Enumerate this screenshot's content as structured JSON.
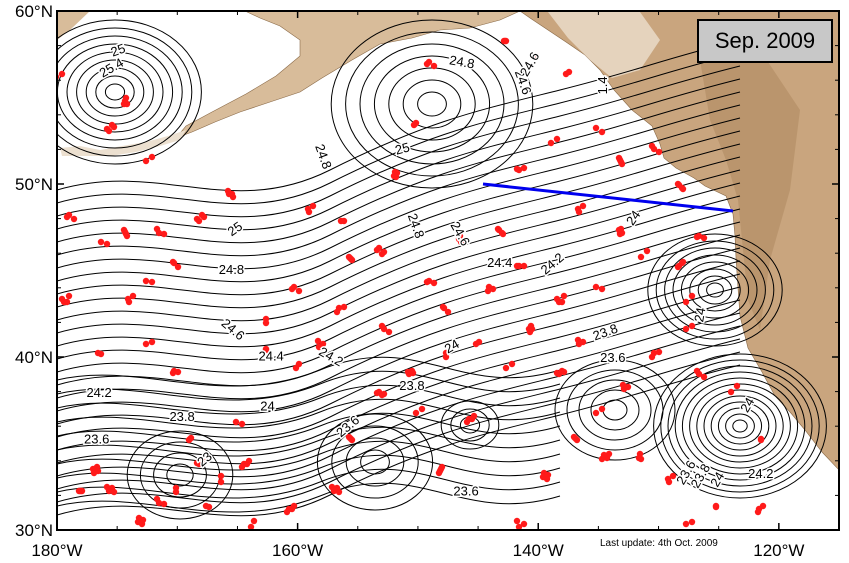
{
  "map": {
    "date_label": "Sep. 2009",
    "footer_note": "Last update: 4th Oct. 2009",
    "colors": {
      "land": "#c9a57e",
      "land_light": "#e2cdb3",
      "contour": "#000000",
      "float": "#ff1a1a",
      "section_line": "#0000ee"
    },
    "lon_ticks": [
      "180°W",
      "160°W",
      "140°W",
      "120°W"
    ],
    "lat_ticks": [
      "60°N",
      "50°N",
      "40°N",
      "30°N"
    ],
    "contour_labels": [
      {
        "text": "25",
        "lon": -151.2,
        "lat": 51.8,
        "rot": -15
      },
      {
        "text": "24.8",
        "lon": -146.4,
        "lat": 56.8,
        "rot": 10
      },
      {
        "text": "24.6",
        "lon": -141.6,
        "lat": 55.8,
        "rot": 70
      },
      {
        "text": "24.8",
        "lon": -158.2,
        "lat": 51.5,
        "rot": 70
      },
      {
        "text": "25",
        "lon": -165,
        "lat": 47.2,
        "rot": -35
      },
      {
        "text": "24.8",
        "lon": -165.5,
        "lat": 44.8,
        "rot": 0
      },
      {
        "text": "24.8",
        "lon": -150.5,
        "lat": 47.5,
        "rot": 70
      },
      {
        "text": "24.6",
        "lon": -146.8,
        "lat": 47.0,
        "rot": 60
      },
      {
        "text": "24.4",
        "lon": -143.2,
        "lat": 45.2,
        "rot": 0
      },
      {
        "text": "24.2",
        "lon": -138.6,
        "lat": 45.2,
        "rot": -40
      },
      {
        "text": "24",
        "lon": -131.8,
        "lat": 47.9,
        "rot": -55
      },
      {
        "text": "23.8",
        "lon": -134.3,
        "lat": 41.2,
        "rot": -20
      },
      {
        "text": "23.6",
        "lon": -133.8,
        "lat": 39.7,
        "rot": 0
      },
      {
        "text": "24",
        "lon": -147,
        "lat": 40.4,
        "rot": -30
      },
      {
        "text": "24.2",
        "lon": -157.4,
        "lat": 39.8,
        "rot": 30
      },
      {
        "text": "24.6",
        "lon": -165.6,
        "lat": 41.4,
        "rot": 40
      },
      {
        "text": "24.4",
        "lon": -162.2,
        "lat": 39.8,
        "rot": 0
      },
      {
        "text": "23.8",
        "lon": -150.5,
        "lat": 38.1,
        "rot": 0
      },
      {
        "text": "24",
        "lon": -162.5,
        "lat": 36.9,
        "rot": 0
      },
      {
        "text": "23.6",
        "lon": -155.6,
        "lat": 35.8,
        "rot": -40
      },
      {
        "text": "23.6",
        "lon": -146,
        "lat": 32.0,
        "rot": 0
      },
      {
        "text": "24.2",
        "lon": -176.5,
        "lat": 37.7,
        "rot": 0
      },
      {
        "text": "23.8",
        "lon": -169.6,
        "lat": 36.3,
        "rot": 0
      },
      {
        "text": "23.6",
        "lon": -176.7,
        "lat": 35.0,
        "rot": 0
      },
      {
        "text": "23",
        "lon": -167.5,
        "lat": 33.9,
        "rot": -40
      },
      {
        "text": "23.6",
        "lon": -127.4,
        "lat": 33.2,
        "rot": -60
      },
      {
        "text": "23.8",
        "lon": -126.2,
        "lat": 33.0,
        "rot": -60
      },
      {
        "text": "24",
        "lon": -124.8,
        "lat": 32.8,
        "rot": -60
      },
      {
        "text": "24.2",
        "lon": -121.5,
        "lat": 33.0,
        "rot": 0
      },
      {
        "text": "24",
        "lon": -122.3,
        "lat": 37.1,
        "rot": -60
      },
      {
        "text": "24",
        "lon": -126.2,
        "lat": 42.4,
        "rot": -80
      },
      {
        "text": "24.6",
        "lon": -140.4,
        "lat": 56.8,
        "rot": -60
      },
      {
        "text": "1.4",
        "lon": -134.3,
        "lat": 55.7,
        "rot": -90
      },
      {
        "text": "25.4",
        "lon": -175.3,
        "lat": 56.5,
        "rot": -30
      },
      {
        "text": "25",
        "lon": -174.8,
        "lat": 57.5,
        "rot": -20
      }
    ]
  }
}
